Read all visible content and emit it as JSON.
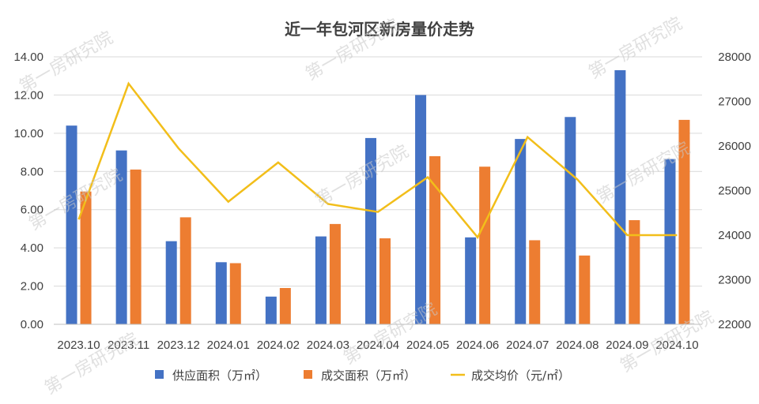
{
  "chart_data": {
    "type": "bar",
    "title": "近一年包河区新房量价走势",
    "categories": [
      "2023.10",
      "2023.11",
      "2023.12",
      "2024.01",
      "2024.02",
      "2024.03",
      "2024.04",
      "2024.05",
      "2024.06",
      "2024.07",
      "2024.08",
      "2024.09",
      "2024.10"
    ],
    "series": [
      {
        "name": "供应面积（万㎡）",
        "type": "bar",
        "axis": "left",
        "color": "#4472C4",
        "values": [
          10.4,
          9.1,
          4.35,
          3.25,
          1.45,
          4.6,
          9.75,
          12.0,
          4.55,
          9.7,
          10.85,
          13.3,
          8.65
        ]
      },
      {
        "name": "成交面积（万㎡）",
        "type": "bar",
        "axis": "left",
        "color": "#ED7D31",
        "values": [
          6.95,
          8.1,
          5.6,
          3.2,
          1.9,
          5.25,
          4.5,
          8.8,
          8.25,
          4.4,
          3.6,
          5.45,
          10.7
        ]
      },
      {
        "name": "成交均价（元/㎡）",
        "type": "line",
        "axis": "right",
        "color": "#F2BE1A",
        "values": [
          24350,
          27400,
          25950,
          24750,
          25630,
          24700,
          24520,
          25300,
          23950,
          26200,
          25250,
          24000,
          24000
        ]
      }
    ],
    "y_left": {
      "min": 0,
      "max": 14,
      "step": 2,
      "ticks": [
        "0.00",
        "2.00",
        "4.00",
        "6.00",
        "8.00",
        "10.00",
        "12.00",
        "14.00"
      ]
    },
    "y_right": {
      "min": 22000,
      "max": 28000,
      "step": 1000,
      "ticks": [
        "22000",
        "23000",
        "24000",
        "25000",
        "26000",
        "27000",
        "28000"
      ]
    },
    "grid": true,
    "legend_position": "bottom",
    "watermark": "第一房研究院"
  }
}
